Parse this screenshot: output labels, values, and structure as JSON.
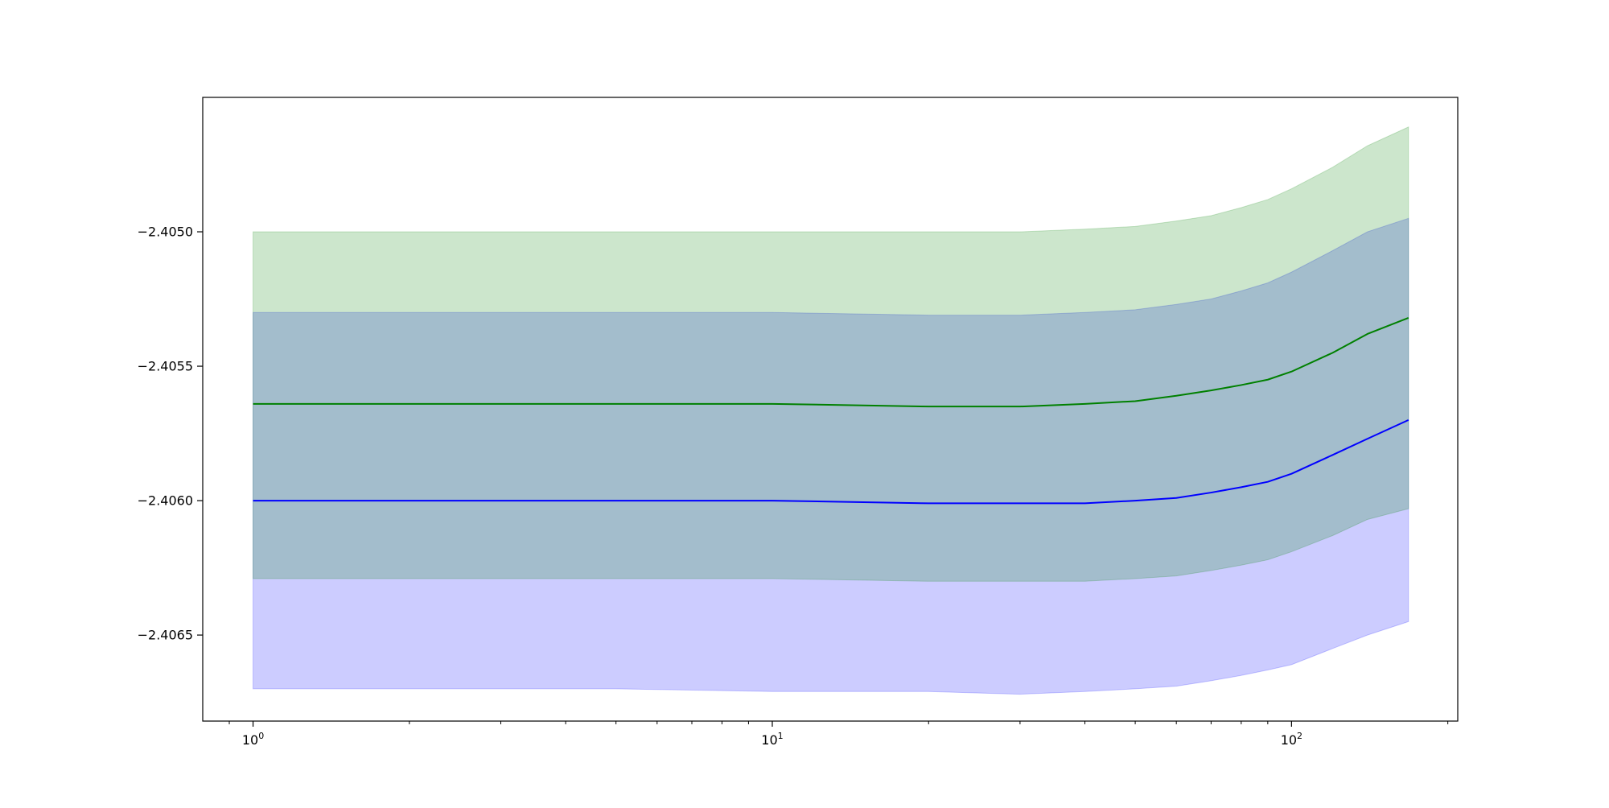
{
  "chart_data": {
    "type": "area",
    "title": "",
    "xlabel": "",
    "ylabel": "",
    "x_scale": "log",
    "xlim": [
      0.8,
      209
    ],
    "ylim": [
      -2.40682,
      -2.4045
    ],
    "grid": false,
    "x_major_ticks": [
      {
        "value": 1,
        "base": "10",
        "exp": "0"
      },
      {
        "value": 10,
        "base": "10",
        "exp": "1"
      },
      {
        "value": 100,
        "base": "10",
        "exp": "2"
      }
    ],
    "x_minor_ticks": [
      0.9,
      2,
      3,
      4,
      5,
      6,
      7,
      8,
      9,
      20,
      30,
      40,
      50,
      60,
      70,
      80,
      90,
      200
    ],
    "y_ticks": [
      {
        "value": -2.405,
        "label": "−2.4050"
      },
      {
        "value": -2.4055,
        "label": "−2.4055"
      },
      {
        "value": -2.406,
        "label": "−2.4060"
      },
      {
        "value": -2.4065,
        "label": "−2.4065"
      }
    ],
    "x": [
      1,
      2,
      5,
      10,
      20,
      30,
      40,
      50,
      60,
      70,
      80,
      90,
      100,
      120,
      140,
      168
    ],
    "series": [
      {
        "color": "#0000ff",
        "band_color": "#0000ff",
        "mean": [
          -2.406,
          -2.406,
          -2.406,
          -2.406,
          -2.40601,
          -2.40601,
          -2.40601,
          -2.406,
          -2.40599,
          -2.40597,
          -2.40595,
          -2.40593,
          -2.4059,
          -2.40583,
          -2.40577,
          -2.4057
        ],
        "lower": [
          -2.4067,
          -2.4067,
          -2.4067,
          -2.40671,
          -2.40671,
          -2.40672,
          -2.40671,
          -2.4067,
          -2.40669,
          -2.40667,
          -2.40665,
          -2.40663,
          -2.40661,
          -2.40655,
          -2.4065,
          -2.40645
        ],
        "upper": [
          -2.4053,
          -2.4053,
          -2.4053,
          -2.4053,
          -2.40531,
          -2.40531,
          -2.4053,
          -2.40529,
          -2.40527,
          -2.40525,
          -2.40522,
          -2.40519,
          -2.40515,
          -2.40507,
          -2.405,
          -2.40495
        ]
      },
      {
        "color": "#008000",
        "band_color": "#008000",
        "mean": [
          -2.40564,
          -2.40564,
          -2.40564,
          -2.40564,
          -2.40565,
          -2.40565,
          -2.40564,
          -2.40563,
          -2.40561,
          -2.40559,
          -2.40557,
          -2.40555,
          -2.40552,
          -2.40545,
          -2.40538,
          -2.40532
        ],
        "lower": [
          -2.40629,
          -2.40629,
          -2.40629,
          -2.40629,
          -2.4063,
          -2.4063,
          -2.4063,
          -2.40629,
          -2.40628,
          -2.40626,
          -2.40624,
          -2.40622,
          -2.40619,
          -2.40613,
          -2.40607,
          -2.40603
        ],
        "upper": [
          -2.405,
          -2.405,
          -2.405,
          -2.405,
          -2.405,
          -2.405,
          -2.40499,
          -2.40498,
          -2.40496,
          -2.40494,
          -2.40491,
          -2.40488,
          -2.40484,
          -2.40476,
          -2.40468,
          -2.40461
        ]
      }
    ]
  }
}
